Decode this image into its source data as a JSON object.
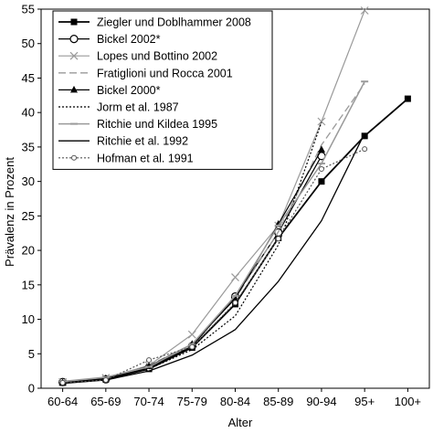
{
  "chart_data": {
    "type": "line",
    "title": "",
    "xlabel": "Alter",
    "ylabel": "Prävalenz in Prozent",
    "categories": [
      "60-64",
      "65-69",
      "70-74",
      "75-79",
      "80-84",
      "85-89",
      "90-94",
      "95+",
      "100+"
    ],
    "ylim": [
      0,
      55
    ],
    "yticks": [
      0,
      5,
      10,
      15,
      20,
      25,
      30,
      35,
      40,
      45,
      50,
      55
    ],
    "grid": false,
    "legend_position": "top-left",
    "series": [
      {
        "name": "Ziegler und Doblhammer 2008",
        "values": [
          0.8,
          1.3,
          2.8,
          5.9,
          12.2,
          21.8,
          30.0,
          36.6,
          42.0
        ],
        "color": "#000000",
        "dash": "none",
        "marker": "square",
        "width": 1.8
      },
      {
        "name": "Bickel 2002*",
        "values": [
          0.9,
          1.3,
          3.0,
          6.1,
          13.3,
          22.6,
          33.7,
          null,
          null
        ],
        "color": "#000000",
        "dash": "none",
        "marker": "circle-open",
        "width": 1.2
      },
      {
        "name": "Lopes und Bottino 2002",
        "values": [
          0.9,
          1.5,
          3.3,
          7.8,
          16.1,
          23.6,
          38.7,
          54.8,
          null
        ],
        "color": "#9a9a9a",
        "dash": "none",
        "marker": "x",
        "width": 1.2
      },
      {
        "name": "Fratiglioni und Rocca 2001",
        "values": [
          1.0,
          1.4,
          3.3,
          6.4,
          13.0,
          22.7,
          35.3,
          44.2,
          null
        ],
        "color": "#9a9a9a",
        "dash": "8,4",
        "marker": "none",
        "width": 1.3
      },
      {
        "name": "Bickel 2000*",
        "values": [
          0.8,
          1.4,
          3.2,
          6.4,
          13.0,
          23.8,
          34.6,
          null,
          null
        ],
        "color": "#000000",
        "dash": "none",
        "marker": "triangle",
        "width": 1.2
      },
      {
        "name": "Jorm et al. 1987",
        "values": [
          0.7,
          1.4,
          2.8,
          5.6,
          10.5,
          20.8,
          38.6,
          null,
          null
        ],
        "color": "#000000",
        "dash": "2,2",
        "marker": "none",
        "width": 1.2
      },
      {
        "name": "Ritchie und Kildea 1995",
        "values": [
          1.0,
          1.6,
          3.1,
          6.4,
          13.4,
          23.6,
          32.6,
          44.5,
          null
        ],
        "color": "#9a9a9a",
        "dash": "none",
        "marker": "dash",
        "width": 1.5
      },
      {
        "name": "Ritchie et al. 1992",
        "values": [
          0.7,
          1.2,
          2.5,
          4.8,
          8.5,
          15.5,
          24.3,
          37.0,
          null
        ],
        "color": "#000000",
        "dash": "none",
        "marker": "none",
        "width": 1.3
      },
      {
        "name": "Hofman et al. 1991",
        "values": [
          0.8,
          1.2,
          4.1,
          6.0,
          12.4,
          21.7,
          31.8,
          34.7,
          null
        ],
        "color": "#555555",
        "dash": "2,2",
        "marker": "circle-open-small",
        "width": 1.2
      }
    ]
  }
}
